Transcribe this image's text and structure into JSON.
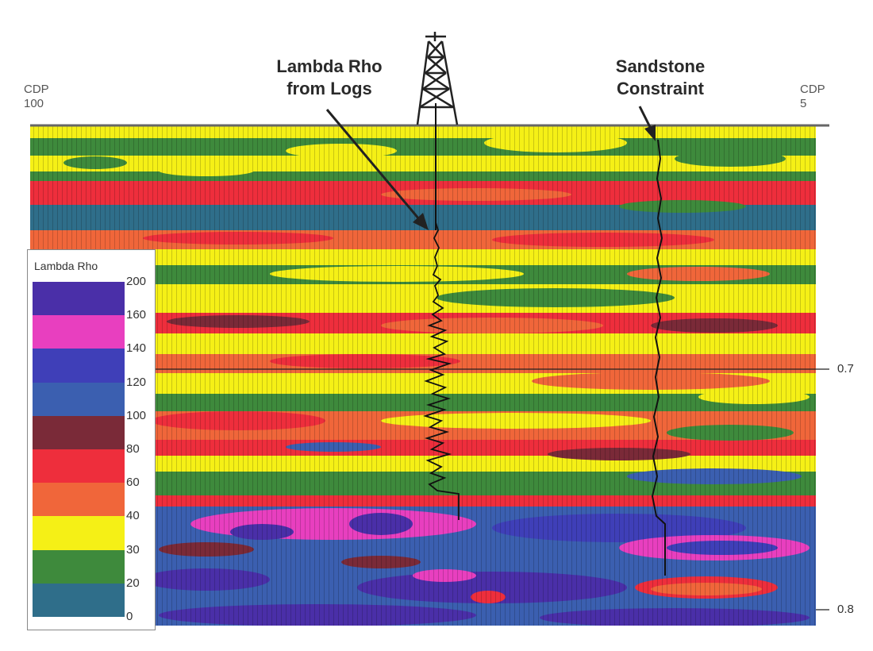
{
  "chart_data": {
    "type": "heatmap",
    "title": "",
    "left_label": [
      "CDP",
      "100"
    ],
    "right_label": [
      "CDP",
      "5"
    ],
    "callouts": [
      {
        "name": "lambda-rho-from-logs",
        "lines": [
          "Lambda Rho",
          "from Logs"
        ]
      },
      {
        "name": "sandstone-constraint",
        "lines": [
          "Sandstone",
          "Constraint"
        ]
      }
    ],
    "time_axis": {
      "ticks": [
        "0.7",
        "0.8"
      ],
      "unit": "s"
    },
    "colorbar": {
      "title": "Lambda Rho",
      "ticks": [
        "200",
        "160",
        "140",
        "120",
        "100",
        "80",
        "60",
        "40",
        "30",
        "20",
        "0"
      ],
      "bins": [
        {
          "from": 160,
          "to": 200,
          "color": "#4a2fa8"
        },
        {
          "from": 140,
          "to": 160,
          "color": "#e83fbf"
        },
        {
          "from": 120,
          "to": 140,
          "color": "#3f3fb8"
        },
        {
          "from": 100,
          "to": 120,
          "color": "#3b5fb0"
        },
        {
          "from": 80,
          "to": 100,
          "color": "#7a2a38"
        },
        {
          "from": 60,
          "to": 80,
          "color": "#ee2e3c"
        },
        {
          "from": 40,
          "to": 60,
          "color": "#f0663a"
        },
        {
          "from": 30,
          "to": 40,
          "color": "#f5f016"
        },
        {
          "from": 20,
          "to": 30,
          "color": "#3e8a3c"
        },
        {
          "from": 0,
          "to": 20,
          "color": "#2f6e8a"
        }
      ]
    },
    "layers": [
      {
        "band": "upper",
        "dominant_values": [
          30,
          20,
          60,
          20,
          40
        ]
      },
      {
        "band": "middle",
        "dominant_values": [
          30,
          60,
          40,
          20,
          60
        ]
      },
      {
        "band": "lower",
        "dominant_values": [
          120,
          160,
          200,
          60
        ]
      }
    ]
  }
}
